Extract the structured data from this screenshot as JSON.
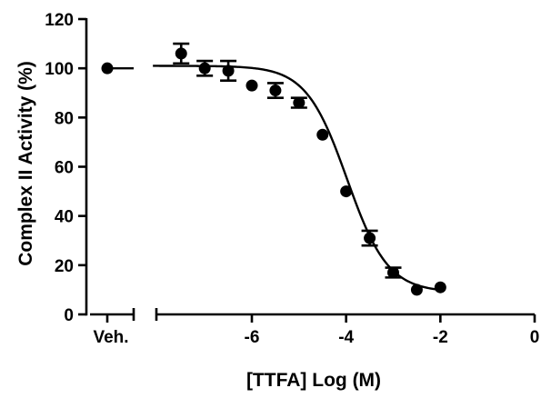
{
  "chart_data": {
    "type": "scatter",
    "xlabel": "[TTFA] Log (M)",
    "ylabel": "Complex II Activity (%)",
    "xlim": [
      -8,
      0
    ],
    "ylim": [
      0,
      120
    ],
    "x_ticks": [
      -6,
      -4,
      -2,
      0
    ],
    "y_ticks": [
      0,
      20,
      40,
      60,
      80,
      100,
      120
    ],
    "x_tick_labels": [
      "-6",
      "-4",
      "-2",
      "0"
    ],
    "y_tick_labels": [
      "0",
      "20",
      "40",
      "60",
      "80",
      "100",
      "120"
    ],
    "vehicle_label": "Veh.",
    "vehicle_value": 100,
    "vehicle_baseline": 100,
    "x_axis_break": true,
    "grid": false,
    "legend": "none",
    "series": [
      {
        "x": [
          -7.5,
          -7,
          -6.5,
          -6,
          -5.5,
          -5,
          -4.5,
          -4,
          -3.5,
          -3,
          -2.5,
          -2
        ],
        "y": [
          106,
          100,
          99,
          93,
          91,
          86,
          73,
          50,
          31,
          17,
          10,
          11
        ],
        "err": [
          4,
          3,
          4,
          0,
          3,
          2,
          0,
          0,
          3,
          2,
          0,
          0
        ]
      }
    ],
    "fit": {
      "type": "sigmoidal-dose-response",
      "top": 101,
      "bottom": 9,
      "log_ic50": -3.98,
      "hill_slope": -1.0
    }
  }
}
